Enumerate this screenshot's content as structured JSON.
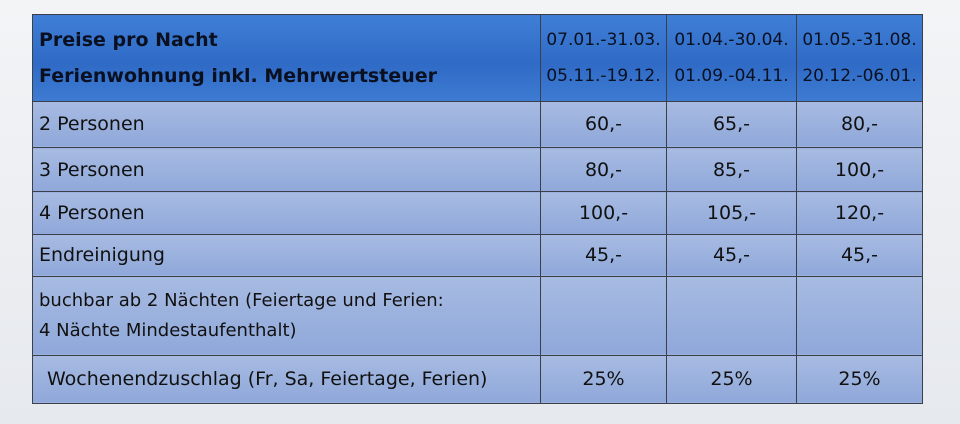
{
  "table": {
    "header": {
      "title_line1": "Preise pro Nacht",
      "title_line2": "Ferienwohnung inkl. Mehrwertsteuer",
      "periods": [
        {
          "line1": "07.01.-31.03.",
          "line2": "05.11.-19.12."
        },
        {
          "line1": "01.04.-30.04.",
          "line2": "01.09.-04.11."
        },
        {
          "line1": "01.05.-31.08.",
          "line2": "20.12.-06.01."
        }
      ]
    },
    "rows": [
      {
        "label": "2 Personen",
        "values": [
          "60,-",
          "65,-",
          "80,-"
        ]
      },
      {
        "label": "3 Personen",
        "values": [
          "80,-",
          "85,-",
          "100,-"
        ]
      },
      {
        "label": "4 Personen",
        "values": [
          "100,-",
          "105,-",
          "120,-"
        ]
      },
      {
        "label": "Endreinigung",
        "values": [
          "45,-",
          "45,-",
          "45,-"
        ]
      },
      {
        "label_line1": "buchbar ab 2 Nächten (Feiertage und Ferien:",
        "label_line2": "4 Nächte Mindestaufenthalt)",
        "values": [
          "",
          "",
          ""
        ]
      },
      {
        "label": "Wochenendzuschlag (Fr, Sa, Feiertage, Ferien)",
        "values": [
          "25%",
          "25%",
          "25%"
        ]
      }
    ]
  },
  "colors": {
    "header_blue": "#2f6bc6",
    "body_blue": "#97aedd",
    "border": "#3b3f49"
  }
}
